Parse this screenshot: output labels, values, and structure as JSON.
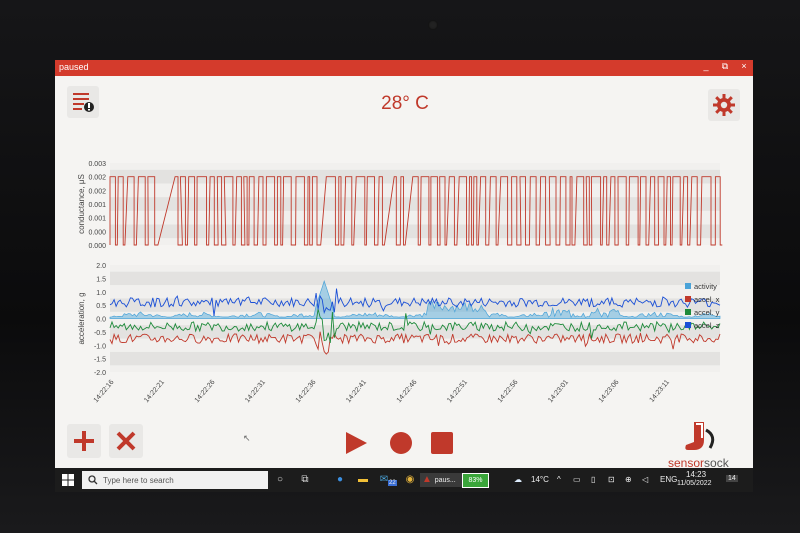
{
  "window": {
    "title": "paused",
    "minimize": "_",
    "restore": "⧉",
    "close": "×"
  },
  "header": {
    "temperature": "28° C"
  },
  "chart_data": [
    {
      "type": "line",
      "ylabel": "conductance, μS",
      "ylim": [
        0,
        0.003
      ],
      "yticks": [
        "0.003",
        "0.002",
        "0.002",
        "0.001",
        "0.001",
        "0.000",
        "0.000"
      ],
      "series": [
        {
          "name": "conductance",
          "color": "#c0392b",
          "pattern": "binary-square",
          "values": [
            0,
            0.0025
          ]
        }
      ]
    },
    {
      "type": "line",
      "ylabel": "acceleration, g",
      "ylim": [
        -2,
        2
      ],
      "yticks": [
        "2.0",
        "1.5",
        "1.0",
        "0.5",
        "0.0",
        "-0.5",
        "-1.0",
        "-1.5",
        "-2.0"
      ],
      "xticks": [
        "14:22:16",
        "14:22:21",
        "14:22:26",
        "14:22:31",
        "14:22:36",
        "14:22:41",
        "14:22:46",
        "14:22:51",
        "14:22:56",
        "14:23:01",
        "14:23:06",
        "14:23:11"
      ],
      "legend_position": "right",
      "series": [
        {
          "name": "activity",
          "color": "#4aa3d8",
          "type": "area",
          "approx_range": [
            0,
            1.4
          ]
        },
        {
          "name": "accel. x",
          "color": "#c0392b",
          "approx_mean": -0.75
        },
        {
          "name": "accel. y",
          "color": "#1e8a3a",
          "approx_mean": -0.3
        },
        {
          "name": "accel. z",
          "color": "#1a4fd6",
          "approx_mean": 0.6
        }
      ]
    }
  ],
  "brand": {
    "left": "sensor",
    "right": "sock"
  },
  "taskbar": {
    "search_placeholder": "Type here to search",
    "mail_badge": "22",
    "app_label": "paus...",
    "battery": "83%",
    "weather": "14°C",
    "lang": "ENG",
    "time": "14:23",
    "date": "11/05/2022",
    "notif_count": "14"
  }
}
